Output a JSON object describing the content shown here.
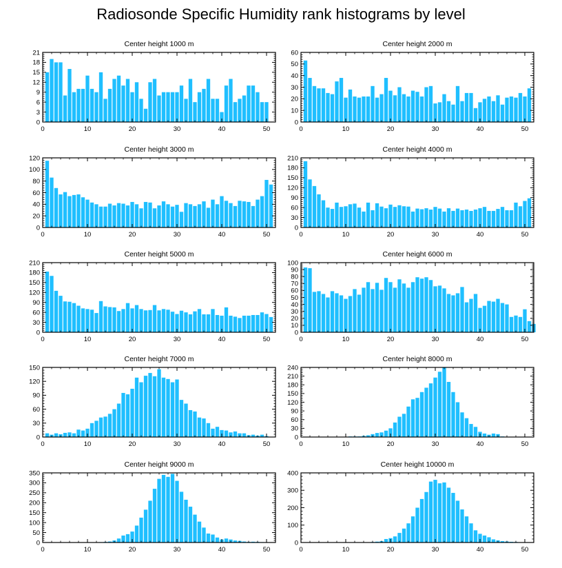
{
  "title": "Radiosonde Specific Humidity rank histograms by level",
  "colors": {
    "bar": "#1fbfff",
    "axis": "#000000"
  },
  "chart_data": [
    {
      "type": "bar",
      "title": "Center height 1000 m",
      "ylim": [
        0,
        21
      ],
      "yticks": [
        0,
        3,
        6,
        9,
        12,
        15,
        18,
        21
      ],
      "xlim": [
        0,
        52
      ],
      "xticks": [
        0,
        10,
        20,
        30,
        40,
        50
      ],
      "values": [
        15,
        19,
        18,
        18,
        8,
        16,
        9,
        10,
        10,
        14,
        10,
        9,
        15,
        7,
        10,
        13,
        14,
        11,
        13,
        9,
        12,
        7,
        4,
        12,
        13,
        8,
        9,
        9,
        9,
        9,
        11,
        7,
        13,
        6,
        9,
        10,
        13,
        7,
        7,
        3,
        11,
        13,
        6,
        7,
        8,
        11,
        11,
        9,
        6,
        6
      ]
    },
    {
      "type": "bar",
      "title": "Center height 2000 m",
      "ylim": [
        0,
        60
      ],
      "yticks": [
        0,
        10,
        20,
        30,
        40,
        50,
        60
      ],
      "xlim": [
        0,
        52
      ],
      "xticks": [
        0,
        10,
        20,
        30,
        40,
        50
      ],
      "values": [
        53,
        38,
        31,
        29,
        29,
        25,
        24,
        35,
        38,
        21,
        28,
        22,
        21,
        22,
        22,
        31,
        21,
        24,
        38,
        27,
        23,
        30,
        24,
        22,
        27,
        26,
        22,
        30,
        31,
        16,
        17,
        24,
        18,
        15,
        31,
        18,
        25,
        25,
        12,
        17,
        20,
        22,
        18,
        23,
        15,
        21,
        22,
        21,
        25,
        22,
        29
      ]
    },
    {
      "type": "bar",
      "title": "Center height 3000 m",
      "ylim": [
        0,
        120
      ],
      "yticks": [
        0,
        20,
        40,
        60,
        80,
        100,
        120
      ],
      "xlim": [
        0,
        52
      ],
      "xticks": [
        0,
        10,
        20,
        30,
        40,
        50
      ],
      "values": [
        115,
        86,
        68,
        57,
        61,
        54,
        56,
        57,
        52,
        48,
        43,
        40,
        36,
        36,
        41,
        38,
        42,
        41,
        38,
        44,
        40,
        33,
        44,
        43,
        33,
        38,
        45,
        40,
        36,
        39,
        27,
        42,
        40,
        37,
        40,
        45,
        34,
        48,
        40,
        54,
        46,
        42,
        37,
        46,
        45,
        44,
        37,
        48,
        54,
        82,
        74
      ]
    },
    {
      "type": "bar",
      "title": "Center height 4000 m",
      "ylim": [
        0,
        210
      ],
      "yticks": [
        0,
        30,
        60,
        90,
        120,
        150,
        180,
        210
      ],
      "xlim": [
        0,
        52
      ],
      "xticks": [
        0,
        10,
        20,
        30,
        40,
        50
      ],
      "values": [
        200,
        145,
        125,
        100,
        82,
        60,
        56,
        75,
        62,
        64,
        70,
        72,
        60,
        48,
        75,
        52,
        73,
        63,
        58,
        69,
        62,
        67,
        64,
        63,
        48,
        57,
        55,
        58,
        54,
        62,
        57,
        48,
        58,
        50,
        57,
        52,
        54,
        50,
        54,
        58,
        62,
        50,
        50,
        56,
        62,
        52,
        52,
        75,
        64,
        80,
        88
      ]
    },
    {
      "type": "bar",
      "title": "Center height 5000 m",
      "ylim": [
        0,
        210
      ],
      "yticks": [
        0,
        30,
        60,
        90,
        120,
        150,
        180,
        210
      ],
      "xlim": [
        0,
        52
      ],
      "xticks": [
        0,
        10,
        20,
        30,
        40,
        50
      ],
      "values": [
        183,
        170,
        125,
        110,
        93,
        92,
        88,
        80,
        72,
        70,
        68,
        58,
        94,
        78,
        76,
        75,
        64,
        70,
        88,
        72,
        82,
        70,
        66,
        67,
        82,
        66,
        70,
        68,
        62,
        55,
        65,
        60,
        54,
        63,
        70,
        54,
        54,
        70,
        52,
        50,
        75,
        50,
        47,
        43,
        50,
        50,
        52,
        52,
        60,
        55,
        46
      ]
    },
    {
      "type": "bar",
      "title": "Center height 6000 m",
      "ylim": [
        0,
        100
      ],
      "yticks": [
        0,
        10,
        20,
        30,
        40,
        50,
        60,
        70,
        80,
        90,
        100
      ],
      "xlim": [
        0,
        52
      ],
      "xticks": [
        0,
        10,
        20,
        30,
        40,
        50
      ],
      "values": [
        93,
        92,
        58,
        59,
        55,
        50,
        59,
        56,
        53,
        48,
        52,
        62,
        54,
        64,
        72,
        62,
        71,
        61,
        78,
        72,
        64,
        76,
        70,
        64,
        72,
        79,
        77,
        79,
        75,
        66,
        67,
        63,
        55,
        53,
        56,
        65,
        43,
        48,
        55,
        35,
        38,
        45,
        44,
        48,
        42,
        40,
        22,
        24,
        22,
        33,
        16,
        12
      ]
    },
    {
      "type": "bar",
      "title": "Center height 7000 m",
      "ylim": [
        0,
        150
      ],
      "yticks": [
        0,
        30,
        60,
        90,
        120,
        150
      ],
      "xlim": [
        0,
        52
      ],
      "xticks": [
        0,
        10,
        20,
        30,
        40,
        50
      ],
      "values": [
        8,
        5,
        8,
        6,
        9,
        10,
        8,
        16,
        14,
        18,
        30,
        35,
        42,
        44,
        50,
        60,
        72,
        95,
        92,
        104,
        128,
        118,
        132,
        138,
        131,
        146,
        128,
        125,
        118,
        124,
        80,
        72,
        58,
        55,
        42,
        40,
        30,
        18,
        22,
        15,
        14,
        10,
        12,
        8,
        8,
        4,
        5,
        3,
        5,
        2
      ]
    },
    {
      "type": "bar",
      "title": "Center height 8000 m",
      "ylim": [
        0,
        240
      ],
      "yticks": [
        0,
        30,
        60,
        90,
        120,
        150,
        180,
        210,
        240
      ],
      "xlim": [
        0,
        52
      ],
      "xticks": [
        0,
        10,
        20,
        30,
        40,
        50
      ],
      "values": [
        1,
        1,
        1,
        1,
        1,
        1,
        1,
        1,
        1,
        1,
        2,
        2,
        2,
        4,
        6,
        10,
        14,
        16,
        22,
        30,
        50,
        70,
        80,
        105,
        130,
        135,
        155,
        170,
        185,
        205,
        225,
        240,
        190,
        155,
        120,
        85,
        65,
        45,
        35,
        18,
        12,
        8,
        12,
        10,
        2,
        1,
        1,
        1,
        1,
        1,
        1
      ]
    },
    {
      "type": "bar",
      "title": "Center height 9000 m",
      "ylim": [
        0,
        350
      ],
      "yticks": [
        0,
        50,
        100,
        150,
        200,
        250,
        300,
        350
      ],
      "xlim": [
        0,
        52
      ],
      "xticks": [
        0,
        10,
        20,
        30,
        40,
        50
      ],
      "values": [
        1,
        1,
        1,
        1,
        1,
        1,
        1,
        1,
        1,
        1,
        1,
        1,
        2,
        3,
        5,
        10,
        20,
        35,
        42,
        55,
        85,
        125,
        165,
        210,
        270,
        320,
        340,
        330,
        345,
        310,
        255,
        215,
        180,
        140,
        105,
        75,
        45,
        40,
        25,
        15,
        20,
        15,
        10,
        8,
        5,
        3,
        4,
        3,
        2,
        1,
        1
      ]
    },
    {
      "type": "bar",
      "title": "Center height 10000 m",
      "ylim": [
        0,
        400
      ],
      "yticks": [
        0,
        100,
        200,
        300,
        400
      ],
      "xlim": [
        0,
        52
      ],
      "xticks": [
        0,
        10,
        20,
        30,
        40,
        50
      ],
      "values": [
        1,
        1,
        1,
        1,
        1,
        1,
        1,
        1,
        1,
        1,
        1,
        1,
        1,
        1,
        2,
        3,
        5,
        8,
        20,
        25,
        35,
        55,
        80,
        110,
        150,
        200,
        250,
        290,
        350,
        360,
        340,
        345,
        315,
        285,
        240,
        190,
        150,
        110,
        70,
        50,
        40,
        30,
        18,
        12,
        8,
        6,
        4,
        3,
        2,
        2,
        1
      ]
    }
  ]
}
